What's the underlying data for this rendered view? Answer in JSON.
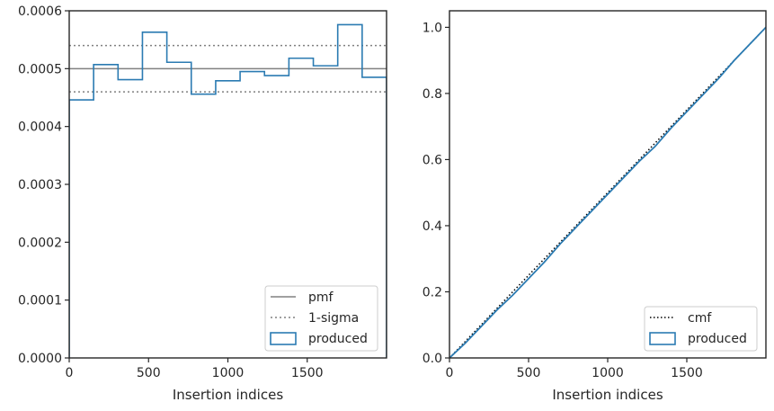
{
  "colors": {
    "produced": "#2b7bb2",
    "pmf": "#808080",
    "sigma": "#808080",
    "cmf": "#000000",
    "axes": "#262626"
  },
  "chart_data": [
    {
      "type": "histogram",
      "xlabel": "Insertion indices",
      "ylabel": "",
      "xlim": [
        0,
        2000
      ],
      "ylim": [
        0,
        0.0006
      ],
      "xticks": [
        0,
        500,
        1000,
        1500
      ],
      "xtick_labels": [
        "0",
        "500",
        "1000",
        "1500"
      ],
      "yticks": [
        0,
        0.0001,
        0.0002,
        0.0003,
        0.0004,
        0.0005,
        0.0006
      ],
      "ytick_labels": [
        "0.0000",
        "0.0001",
        "0.0002",
        "0.0003",
        "0.0004",
        "0.0005",
        "0.0006"
      ],
      "grid": false,
      "legend_location": "lower right",
      "legend": [
        "pmf",
        "1-sigma",
        "produced"
      ],
      "pmf": 0.0005,
      "sigma_band": [
        0.00046,
        0.00054
      ],
      "bin_edges": [
        0,
        153.8,
        307.7,
        461.5,
        615.4,
        769.2,
        923.1,
        1076.9,
        1230.8,
        1384.6,
        1538.5,
        1692.3,
        1846.2,
        2000
      ],
      "values": [
        0.000446,
        0.000507,
        0.000481,
        0.000563,
        0.000511,
        0.000456,
        0.000479,
        0.000495,
        0.000488,
        0.000518,
        0.000505,
        0.000576,
        0.000485
      ]
    },
    {
      "type": "line",
      "xlabel": "Insertion indices",
      "ylabel": "",
      "xlim": [
        0,
        2000
      ],
      "ylim": [
        0,
        1.05
      ],
      "xticks": [
        0,
        500,
        1000,
        1500
      ],
      "xtick_labels": [
        "0",
        "500",
        "1000",
        "1500"
      ],
      "yticks": [
        0,
        0.2,
        0.4,
        0.6,
        0.8,
        1.0
      ],
      "ytick_labels": [
        "0.0",
        "0.2",
        "0.4",
        "0.6",
        "0.8",
        "1.0"
      ],
      "grid": false,
      "legend_location": "lower right",
      "legend": [
        "cmf",
        "produced"
      ],
      "cmf": {
        "x": [
          0,
          2000
        ],
        "y": [
          0,
          1
        ]
      },
      "produced": {
        "x": [
          0,
          100,
          200,
          300,
          400,
          500,
          600,
          700,
          800,
          900,
          1000,
          1100,
          1200,
          1300,
          1400,
          1500,
          1600,
          1700,
          1800,
          1900,
          2000
        ],
        "y": [
          0,
          0.045,
          0.095,
          0.145,
          0.19,
          0.24,
          0.29,
          0.345,
          0.395,
          0.445,
          0.495,
          0.545,
          0.595,
          0.64,
          0.695,
          0.745,
          0.795,
          0.845,
          0.9,
          0.95,
          1.0
        ]
      }
    }
  ]
}
